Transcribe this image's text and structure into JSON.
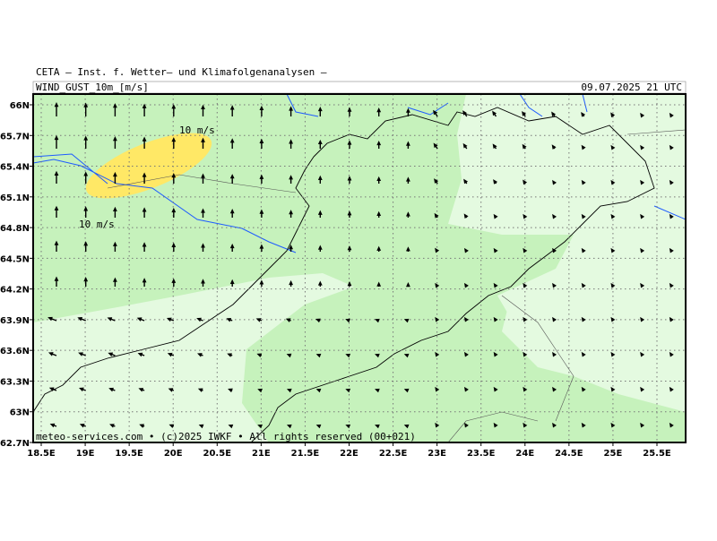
{
  "header": {
    "title": "CETA – Inst. f. Wetter– und Klimafolgenanalysen –",
    "field": "WIND_GUST_10m_[m/s]",
    "datetime": "09.07.2025 21 UTC"
  },
  "map": {
    "lat_ticks": [
      "66N",
      "65.7N",
      "65.4N",
      "65.1N",
      "64.8N",
      "64.5N",
      "64.2N",
      "63.9N",
      "63.6N",
      "63.3N",
      "63N",
      "62.7N"
    ],
    "lon_ticks": [
      "18.5E",
      "19E",
      "19.5E",
      "20E",
      "20.5E",
      "21E",
      "21.5E",
      "22E",
      "22.5E",
      "23E",
      "23.5E",
      "24E",
      "24.5E",
      "25E",
      "25.5E"
    ],
    "contour_labels": [
      "10 m/s",
      "10 m/s"
    ]
  },
  "footer": {
    "credit": "meteo-services.com • (c)2025 IWKF • All rights reserved (00+021)"
  }
}
